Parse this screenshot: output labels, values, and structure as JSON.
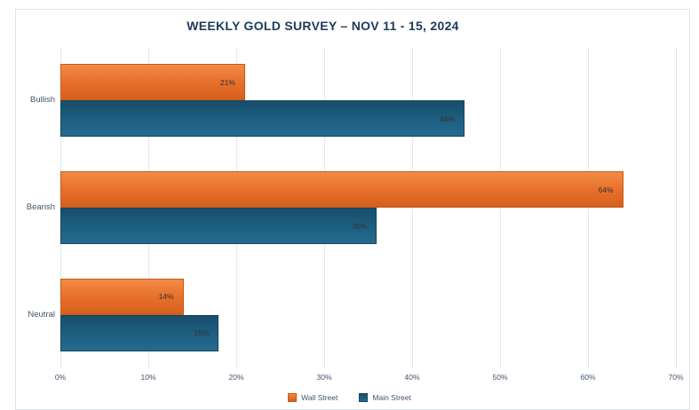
{
  "title": "WEEKLY GOLD SURVEY – NOV 11 - 15, 2024",
  "colors": {
    "wall_street_orange": "#e8712c",
    "main_street_blue": "#1e5f81",
    "gridline": "#dcebf5",
    "card_border": "#d9e7f0",
    "title_text": "#1e3a5c",
    "axis_text": "#44546b",
    "value_text": "#333333"
  },
  "chart_data": {
    "type": "bar",
    "orientation": "horizontal",
    "title": "WEEKLY GOLD SURVEY – NOV 11 - 15, 2024",
    "categories": [
      "Bullish",
      "Bearish",
      "Neutral"
    ],
    "series": [
      {
        "name": "Wall Street",
        "color_class": "bar-wall",
        "values": [
          21,
          64,
          14
        ]
      },
      {
        "name": "Main Street",
        "color_class": "bar-main",
        "values": [
          46,
          36,
          18
        ]
      }
    ],
    "value_labels": [
      [
        "21%",
        "64%",
        "14%"
      ],
      [
        "46%",
        "36%",
        "18%"
      ]
    ],
    "value_suffix": "%",
    "xlabel": "",
    "ylabel": "",
    "xlim": [
      0,
      70
    ],
    "x_ticks": [
      "0%",
      "10%",
      "20%",
      "30%",
      "40%",
      "50%",
      "60%",
      "70%"
    ],
    "grid": true,
    "legend_position": "bottom",
    "legend": [
      "Wall Street",
      "Main Street"
    ]
  }
}
